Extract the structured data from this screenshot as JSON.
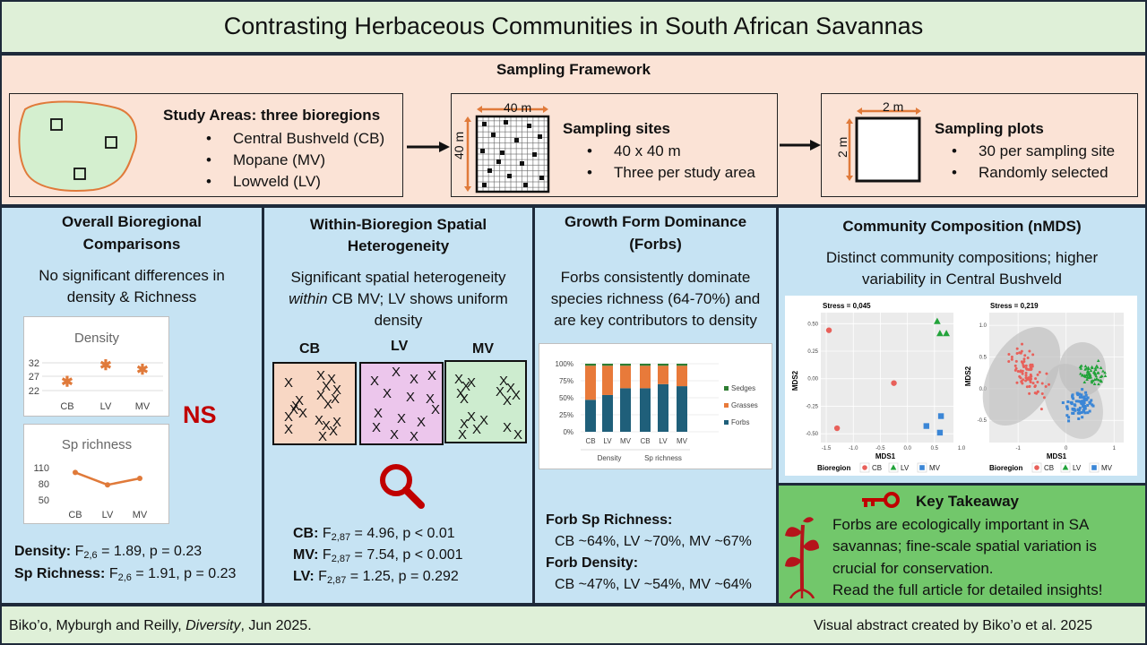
{
  "title": "Contrasting Herbaceous Communities in South African Savannas",
  "framework": {
    "heading": "Sampling Framework",
    "study_areas": {
      "title": "Study Areas: three bioregions",
      "items": [
        "Central Bushveld (CB)",
        "Mopane (MV)",
        "Lowveld (LV)"
      ]
    },
    "sites": {
      "dim_w": "40 m",
      "dim_h": "40 m",
      "title": "Sampling sites",
      "items": [
        "40 x 40 m",
        "Three per study area"
      ]
    },
    "plots": {
      "dim_w": "2 m",
      "dim_h": "2 m",
      "title": "Sampling plots",
      "items": [
        "30 per sampling site",
        "Randomly selected"
      ]
    }
  },
  "overall": {
    "title_l1": "Overall Bioregional",
    "title_l2": "Comparisons",
    "desc_l1": "No significant differences in",
    "desc_l2": "density & Richness",
    "ns_label": "NS",
    "density_chart": {
      "type": "scatter",
      "title": "Density",
      "categories": [
        "CB",
        "LV",
        "MV"
      ],
      "values": [
        25,
        31,
        29.5
      ],
      "yticks": [
        "32",
        "27",
        "22"
      ],
      "ylim": [
        22,
        32
      ]
    },
    "richness_chart": {
      "type": "line",
      "title": "Sp richness",
      "categories": [
        "CB",
        "LV",
        "MV"
      ],
      "values": [
        101,
        78,
        90
      ],
      "yticks": [
        "110",
        "80",
        "50"
      ],
      "ylim": [
        50,
        110
      ]
    },
    "stats": [
      {
        "label": "Density:",
        "sym": "F",
        "sub": "2,6",
        "rest": " = 1.89, p = 0.23"
      },
      {
        "label": "Sp Richness:",
        "sym": "F",
        "sub": "2,6",
        "rest": " = 1.91, p = 0.23"
      }
    ]
  },
  "within": {
    "title_l1": "Within-Bioregion Spatial",
    "title_l2": "Heterogeneity",
    "desc_l1": "Significant spatial heterogeneity",
    "desc_l2_em": "within",
    "desc_l2_rest": " CB MV; LV shows uniform",
    "desc_l3": "density",
    "labels": [
      "CB",
      "LV",
      "MV"
    ],
    "mark": "X",
    "colors": {
      "cb": "#f8d7c4",
      "lv": "#ecc6ec",
      "mv": "#cdeccf"
    },
    "stats": [
      {
        "label": "CB:",
        "sym": "F",
        "sub": "2,87",
        "rest": " = 4.96, p < 0.01"
      },
      {
        "label": "MV:",
        "sym": "F",
        "sub": "2,87",
        "rest": " = 7.54, p < 0.001"
      },
      {
        "label": "LV:",
        "sym": "F",
        "sub": "2,87",
        "rest": " = 1.25, p = 0.292"
      }
    ]
  },
  "growth": {
    "title_l1": "Growth Form Dominance",
    "title_l2": "(Forbs)",
    "desc_l1": "Forbs consistently dominate",
    "desc_l2": "species richness (64-70%) and",
    "desc_l3": "are key contributors to density",
    "chart_data": {
      "type": "bar",
      "categories": [
        "CB",
        "LV",
        "MV",
        "CB",
        "LV",
        "MV"
      ],
      "groups": [
        "Density",
        "Sp richness"
      ],
      "yticks": [
        "100%",
        "75%",
        "50%",
        "25%",
        "0%"
      ],
      "ylim": [
        0,
        100
      ],
      "series": [
        {
          "name": "Forbs",
          "values": [
            47,
            54,
            64,
            64,
            70,
            67
          ],
          "color": "#1f5f7a"
        },
        {
          "name": "Grasses",
          "values": [
            50,
            43,
            33,
            33,
            27,
            30
          ],
          "color": "#e87a3a"
        },
        {
          "name": "Sedges",
          "values": [
            3,
            3,
            3,
            3,
            3,
            3
          ],
          "color": "#2e7d32"
        }
      ]
    },
    "richness_label": "Forb Sp Richness:",
    "richness_values": "CB ~64%, LV ~70%, MV ~67%",
    "density_label": "Forb Density:",
    "density_values": "CB ~47%, LV ~54%, MV ~64%"
  },
  "composition": {
    "title": "Community Composition (nMDS)",
    "desc_l1": "Distinct community compositions; higher",
    "desc_l2": "variability in Central Bushveld",
    "plot1": {
      "stress": "Stress = 0,045",
      "xlabel": "MDS1",
      "ylabel": "MDS2",
      "xticks": [
        "-1.5",
        "-1.0",
        "-0.5",
        "0.0",
        "0.5",
        "1.0"
      ],
      "yticks": [
        "0.50",
        "0.25",
        "0.00",
        "-0.25",
        "-0.50"
      ],
      "points": {
        "CB": [
          [
            -1.45,
            0.44
          ],
          [
            -0.25,
            -0.04
          ],
          [
            -1.3,
            -0.45
          ]
        ],
        "LV": [
          [
            0.55,
            0.52
          ],
          [
            0.6,
            0.41
          ],
          [
            0.72,
            0.41
          ]
        ],
        "MV": [
          [
            0.35,
            -0.43
          ],
          [
            0.62,
            -0.34
          ],
          [
            0.6,
            -0.49
          ]
        ]
      }
    },
    "plot2": {
      "stress": "Stress = 0,219",
      "xlabel": "MDS1",
      "ylabel": "MDS2",
      "xticks": [
        "-1",
        "0",
        "1"
      ],
      "yticks": [
        "1.0",
        "0.5",
        "0.0",
        "-0.5"
      ]
    },
    "legend_title": "Bioregion",
    "legend": [
      "CB",
      "LV",
      "MV"
    ],
    "colors": {
      "CB": "#e8605a",
      "LV": "#22a33a",
      "MV": "#3b86d6"
    }
  },
  "takeaway": {
    "title": "Key Takeaway",
    "lines": [
      "Forbs are ecologically important in SA",
      "savannas; fine-scale spatial variation is",
      "crucial for conservation.",
      "Read the full article for detailed insights!"
    ]
  },
  "footer": {
    "citation_pre": "Biko’o, Myburgh and Reilly, ",
    "citation_journal": "Diversity",
    "citation_post": ", Jun 2025.",
    "credit": "Visual abstract created by Biko’o et al. 2025"
  },
  "icons": [
    "key-icon",
    "plant-icon",
    "magnifier-icon",
    "arrow-right-icon"
  ],
  "palette": {
    "title_bg": "#dff0d8",
    "framework_bg": "#fbe3d6",
    "panel_bg": "#c6e3f3",
    "takeaway_bg": "#72c76b",
    "accent": "#c00000"
  }
}
